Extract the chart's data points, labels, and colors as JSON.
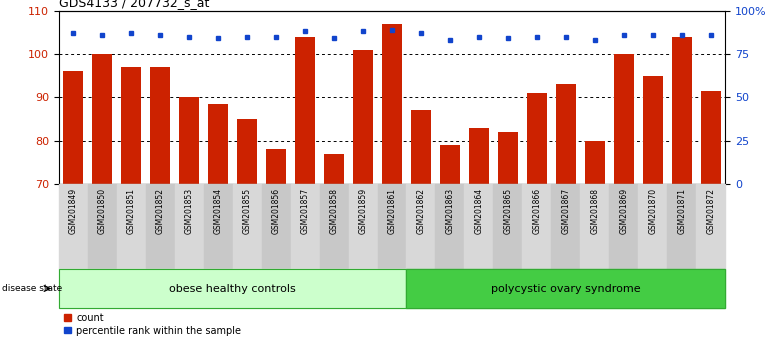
{
  "title": "GDS4133 / 207732_s_at",
  "samples": [
    "GSM201849",
    "GSM201850",
    "GSM201851",
    "GSM201852",
    "GSM201853",
    "GSM201854",
    "GSM201855",
    "GSM201856",
    "GSM201857",
    "GSM201858",
    "GSM201859",
    "GSM201861",
    "GSM201862",
    "GSM201863",
    "GSM201864",
    "GSM201865",
    "GSM201866",
    "GSM201867",
    "GSM201868",
    "GSM201869",
    "GSM201870",
    "GSM201871",
    "GSM201872"
  ],
  "counts": [
    96,
    100,
    97,
    97,
    90,
    88.5,
    85,
    78,
    104,
    77,
    101,
    107,
    87,
    79,
    83,
    82,
    91,
    93,
    80,
    100,
    95,
    104,
    91.5
  ],
  "percentile_ranks_raw": [
    87,
    86,
    87,
    86,
    85,
    84,
    85,
    85,
    88,
    84,
    88,
    89,
    87,
    83,
    85,
    84,
    85,
    85,
    83,
    86,
    86,
    86,
    86
  ],
  "group1_count": 12,
  "group1_label": "obese healthy controls",
  "group2_label": "polycystic ovary syndrome",
  "bar_color": "#cc2200",
  "dot_color": "#1144cc",
  "ylim_left": [
    70,
    110
  ],
  "ylim_right": [
    0,
    100
  ],
  "yticks_left": [
    70,
    80,
    90,
    100,
    110
  ],
  "yticks_right": [
    0,
    25,
    50,
    75,
    100
  ],
  "ytick_labels_right": [
    "0",
    "25",
    "50",
    "75",
    "100%"
  ],
  "group1_color": "#ccffcc",
  "group2_color": "#44cc44",
  "legend_items": [
    "count",
    "percentile rank within the sample"
  ]
}
